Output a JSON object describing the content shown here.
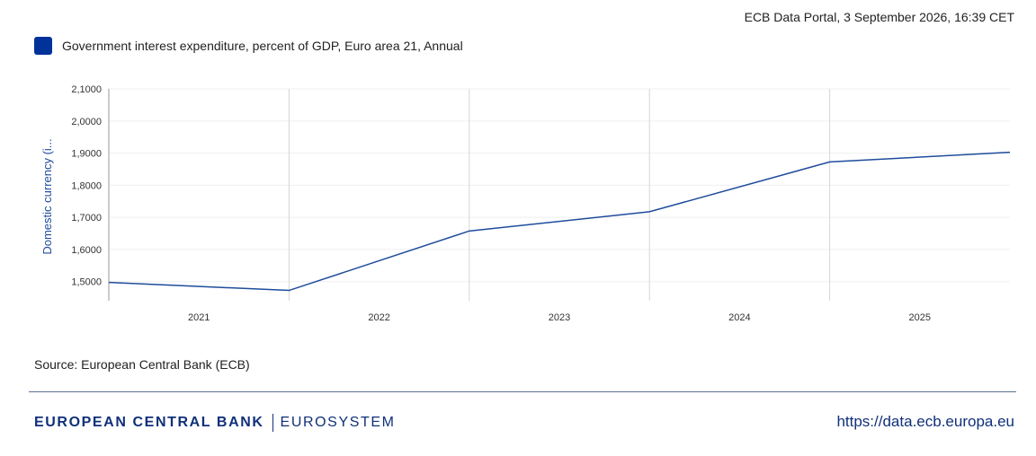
{
  "header": {
    "timestamp": "ECB Data Portal, 3 September 2026, 16:39 CET"
  },
  "legend": {
    "label": "Government interest expenditure, percent of GDP, Euro area 21, Annual",
    "color": "#003299"
  },
  "chart_data": {
    "type": "line",
    "x": [
      "2021",
      "2022",
      "2023",
      "2024",
      "2025"
    ],
    "series": [
      {
        "name": "Government interest expenditure, percent of GDP, Euro area 21, Annual",
        "values": [
          1.4725,
          1.6575,
          1.7175,
          1.8725,
          1.9025
        ],
        "extends_beyond_axis_left": 1.4975,
        "extends_beyond_axis_right": 1.9025,
        "color": "#1f4c9c"
      }
    ],
    "y_ticks": [
      "1,5000",
      "1,6000",
      "1,7000",
      "1,8000",
      "1,9000",
      "2,0000",
      "2,1000"
    ],
    "ylabel": "Domestic currency (i...",
    "ylim": [
      1.4405,
      2.1
    ],
    "grid": true
  },
  "source": "Source: European Central Bank (ECB)",
  "footer": {
    "brand_bold": "EUROPEAN CENTRAL BANK",
    "brand_light": "EUROSYSTEM",
    "url": "https://data.ecb.europa.eu"
  }
}
